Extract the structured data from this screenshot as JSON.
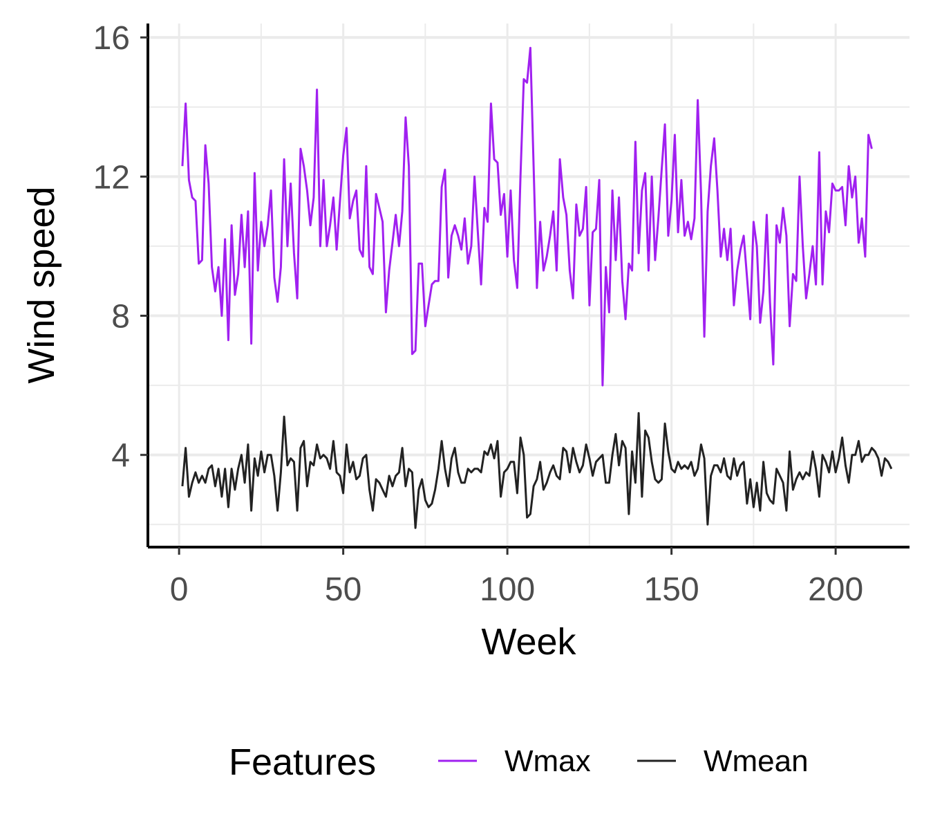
{
  "chart_data": {
    "type": "line",
    "xlabel": "Week",
    "ylabel": "Wind speed",
    "xlim": [
      -9.5,
      222.5
    ],
    "ylim": [
      1.35,
      16.4
    ],
    "xticks": [
      0,
      50,
      100,
      150,
      200
    ],
    "yticks": [
      4,
      8,
      12,
      16
    ],
    "x_tick_labels": [
      "0",
      "50",
      "100",
      "150",
      "200"
    ],
    "y_tick_labels": [
      "4",
      "8",
      "12",
      "16"
    ],
    "grid": true,
    "legend": {
      "title": "Features",
      "position": "bottom"
    },
    "colors": {
      "Wmax": "#a020f0",
      "Wmean": "#222222"
    },
    "x_start": 1,
    "series": [
      {
        "name": "Wmax",
        "color": "#a020f0",
        "values": [
          12.3,
          14.1,
          11.9,
          11.4,
          11.3,
          9.5,
          9.6,
          12.9,
          11.8,
          9.4,
          8.7,
          9.4,
          8.0,
          10.2,
          7.3,
          10.6,
          8.6,
          9.2,
          10.9,
          9.4,
          11.0,
          7.2,
          12.1,
          9.3,
          10.7,
          10.0,
          10.6,
          11.6,
          9.1,
          8.4,
          9.4,
          12.5,
          10.0,
          11.8,
          9.8,
          8.5,
          12.8,
          12.3,
          11.6,
          10.6,
          11.4,
          14.5,
          10.0,
          11.9,
          10.0,
          10.6,
          11.4,
          9.9,
          11.3,
          12.6,
          13.4,
          10.8,
          11.3,
          11.6,
          9.9,
          9.7,
          12.3,
          9.4,
          9.2,
          11.5,
          11.1,
          10.7,
          8.1,
          9.3,
          10.1,
          10.9,
          10.0,
          11.0,
          13.7,
          12.3,
          6.9,
          7.0,
          9.5,
          9.5,
          7.7,
          8.3,
          8.9,
          9.0,
          9.0,
          11.7,
          12.2,
          9.1,
          10.3,
          10.6,
          10.3,
          9.9,
          10.8,
          9.5,
          10.0,
          12.0,
          10.4,
          8.9,
          11.1,
          10.7,
          14.1,
          12.5,
          12.4,
          10.9,
          11.5,
          9.7,
          11.6,
          9.6,
          8.8,
          12.0,
          14.8,
          14.7,
          15.7,
          12.3,
          8.8,
          10.7,
          9.3,
          9.7,
          10.3,
          11.0,
          9.3,
          12.5,
          11.4,
          10.9,
          9.3,
          8.5,
          11.2,
          10.3,
          10.5,
          11.7,
          8.3,
          10.4,
          10.5,
          11.9,
          6.0,
          9.4,
          8.1,
          11.6,
          9.6,
          11.4,
          9.0,
          7.9,
          9.5,
          9.3,
          13.0,
          9.8,
          11.6,
          12.1,
          9.3,
          12.0,
          9.6,
          10.8,
          12.2,
          13.5,
          10.3,
          11.3,
          13.2,
          10.4,
          11.9,
          10.3,
          10.7,
          10.2,
          10.8,
          14.2,
          11.5,
          7.4,
          11.0,
          12.3,
          13.1,
          11.6,
          9.7,
          10.5,
          9.6,
          10.5,
          8.3,
          9.3,
          9.9,
          10.3,
          9.1,
          7.9,
          10.7,
          10.0,
          7.8,
          8.7,
          10.9,
          8.4,
          6.6,
          10.6,
          10.1,
          11.1,
          10.3,
          7.7,
          9.2,
          9.0,
          12.0,
          10.0,
          8.5,
          9.2,
          10.0,
          8.9,
          12.7,
          8.9,
          11.0,
          10.4,
          11.8,
          11.6,
          11.6,
          11.7,
          10.6,
          12.3,
          11.4,
          12.0,
          10.1,
          10.8,
          9.7,
          13.2,
          12.8
        ]
      },
      {
        "name": "Wmean",
        "color": "#222222",
        "values": [
          3.1,
          4.2,
          2.8,
          3.2,
          3.5,
          3.2,
          3.4,
          3.2,
          3.6,
          3.7,
          3.1,
          3.6,
          2.8,
          3.6,
          2.5,
          3.6,
          3.0,
          3.6,
          4.0,
          3.2,
          4.3,
          2.4,
          3.9,
          3.4,
          4.1,
          3.5,
          4.0,
          4.0,
          3.4,
          2.4,
          3.5,
          5.1,
          3.7,
          3.9,
          3.8,
          2.4,
          4.2,
          4.4,
          3.1,
          3.8,
          3.7,
          4.3,
          3.9,
          4.0,
          3.9,
          3.6,
          4.4,
          3.5,
          3.4,
          2.9,
          4.3,
          3.5,
          3.8,
          3.3,
          3.4,
          3.9,
          4.0,
          3.0,
          2.4,
          3.3,
          3.2,
          3.0,
          2.8,
          3.4,
          3.1,
          3.4,
          3.5,
          4.2,
          3.1,
          3.6,
          3.5,
          1.9,
          3.0,
          3.3,
          2.7,
          2.5,
          2.6,
          3.0,
          3.6,
          4.4,
          3.6,
          3.1,
          3.9,
          4.2,
          3.5,
          3.2,
          3.2,
          3.6,
          3.5,
          3.6,
          3.6,
          3.5,
          4.1,
          4.0,
          4.3,
          3.9,
          4.4,
          2.8,
          3.5,
          3.6,
          3.8,
          3.8,
          2.9,
          4.5,
          4.0,
          2.2,
          2.3,
          3.1,
          3.3,
          3.8,
          3.0,
          3.2,
          3.5,
          3.7,
          3.4,
          3.3,
          4.2,
          4.1,
          3.5,
          4.2,
          3.8,
          3.5,
          3.7,
          4.3,
          3.9,
          3.4,
          3.8,
          3.9,
          4.0,
          3.2,
          3.2,
          4.0,
          4.6,
          3.7,
          4.4,
          4.2,
          2.3,
          4.1,
          3.2,
          5.2,
          2.8,
          4.7,
          4.5,
          3.8,
          3.3,
          3.2,
          3.3,
          4.9,
          4.1,
          3.6,
          3.5,
          3.8,
          3.6,
          3.7,
          3.6,
          3.8,
          3.4,
          3.6,
          4.3,
          3.9,
          2.0,
          3.4,
          3.7,
          3.7,
          3.5,
          3.9,
          3.4,
          3.3,
          3.9,
          3.4,
          3.7,
          3.8,
          2.6,
          3.3,
          2.5,
          3.2,
          2.4,
          3.8,
          2.9,
          2.7,
          2.6,
          3.6,
          3.4,
          3.2,
          2.4,
          4.1,
          3.0,
          3.3,
          3.5,
          3.3,
          3.5,
          3.4,
          4.1,
          3.6,
          2.8,
          4.0,
          3.8,
          3.5,
          4.1,
          3.5,
          3.9,
          4.5,
          3.7,
          3.2,
          4.0,
          4.0,
          4.4,
          3.8,
          4.0,
          4.0,
          4.2,
          4.1,
          3.9,
          3.4,
          3.9,
          3.8,
          3.6
        ]
      }
    ]
  }
}
